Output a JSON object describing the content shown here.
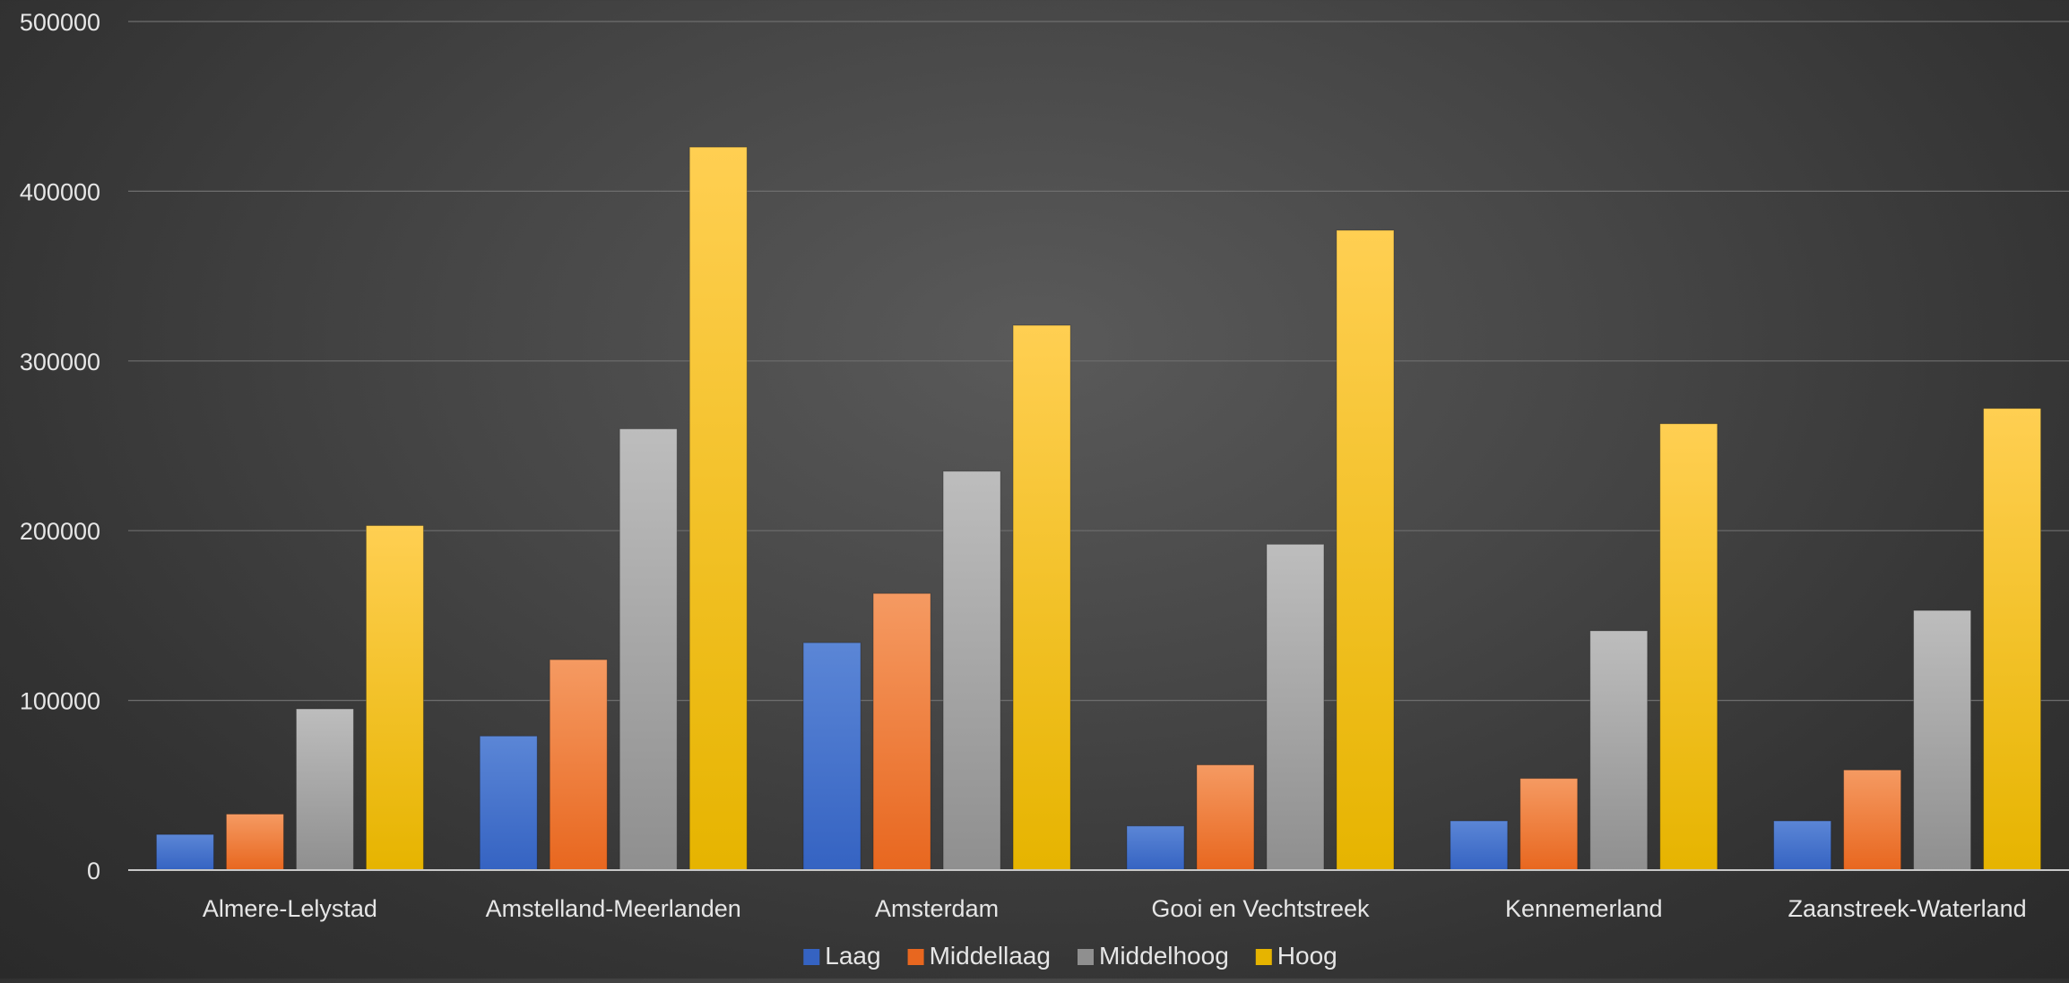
{
  "chart_data": {
    "type": "bar",
    "categories": [
      "Almere-Lelystad",
      "Amstelland-Meerlanden",
      "Amsterdam",
      "Gooi en Vechtstreek",
      "Kennemerland",
      "Zaanstreek-Waterland"
    ],
    "series": [
      {
        "name": "Laag",
        "values": [
          21000,
          79000,
          134000,
          26000,
          29000,
          29000
        ]
      },
      {
        "name": "Middellaag",
        "values": [
          33000,
          124000,
          163000,
          62000,
          54000,
          59000
        ]
      },
      {
        "name": "Middelhoog",
        "values": [
          95000,
          260000,
          235000,
          192000,
          141000,
          153000
        ]
      },
      {
        "name": "Hoog",
        "values": [
          203000,
          426000,
          321000,
          377000,
          263000,
          272000
        ]
      }
    ],
    "y_ticks": [
      "0",
      "100000",
      "200000",
      "300000",
      "400000",
      "500000"
    ],
    "ylim": [
      0,
      500000
    ],
    "grid": true,
    "legend_position": "bottom",
    "colors": {
      "Laag": [
        "#5b86d6",
        "#3563c2"
      ],
      "Middellaag": [
        "#f59a62",
        "#e8671f"
      ],
      "Middelhoog": [
        "#bdbdbd",
        "#8f8f8f"
      ],
      "Hoog": [
        "#ffcf52",
        "#e6b400"
      ]
    }
  }
}
